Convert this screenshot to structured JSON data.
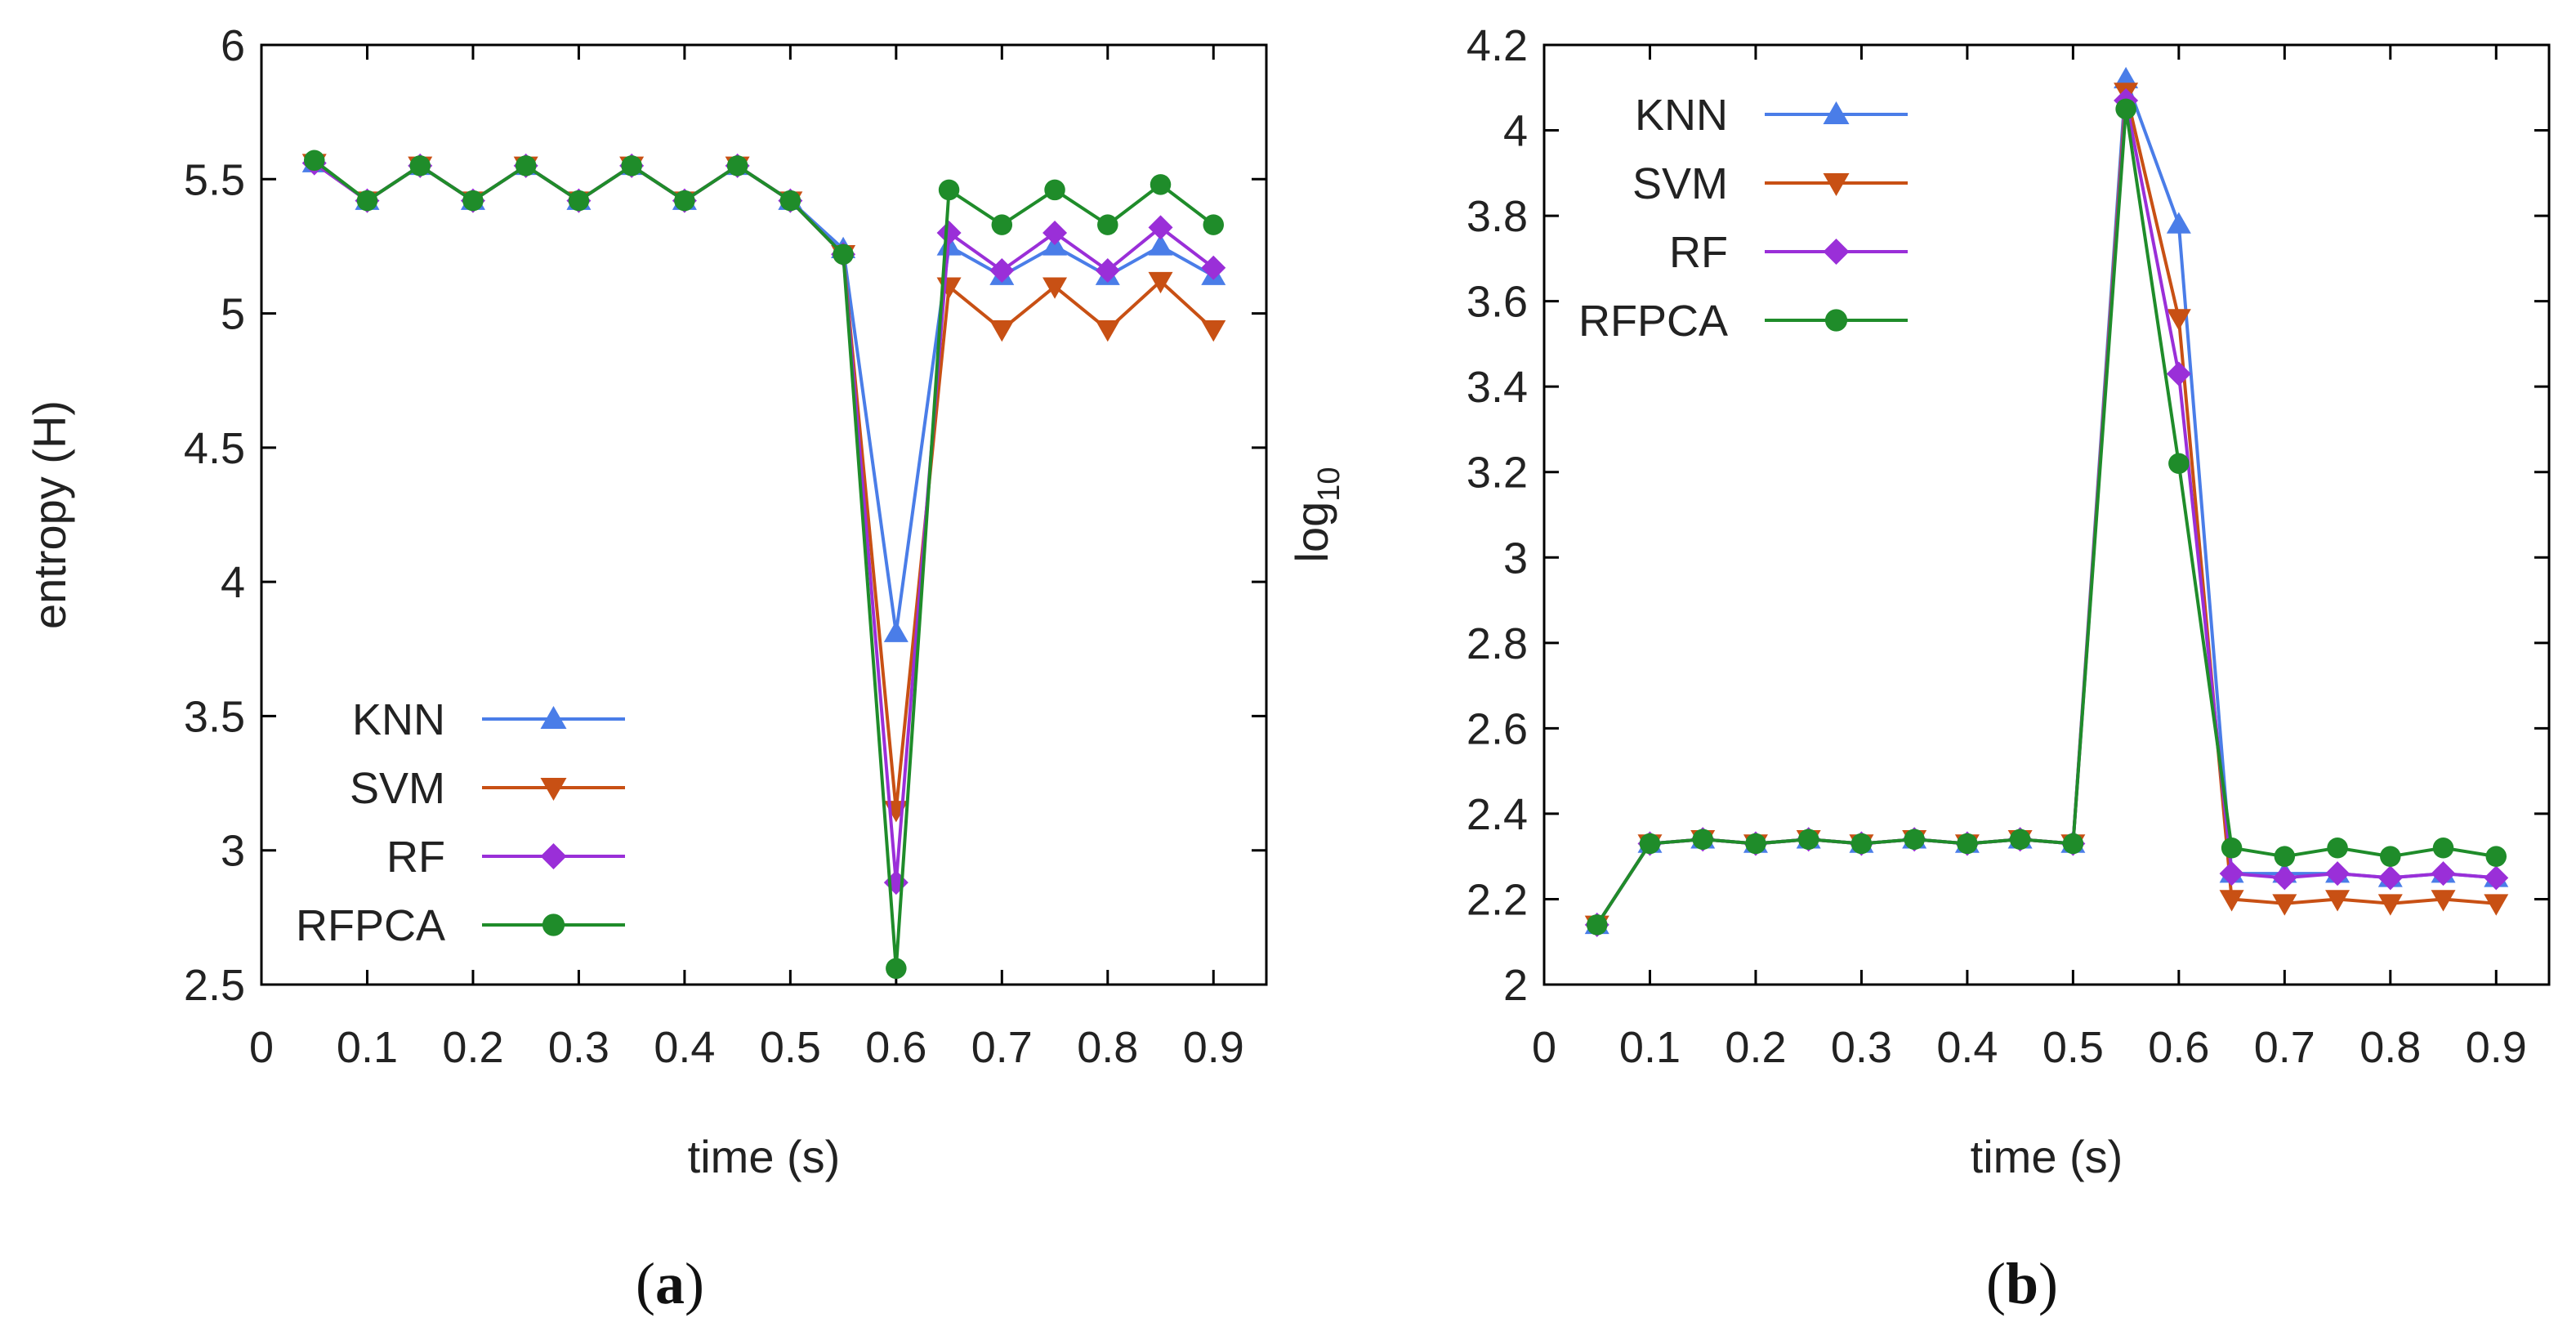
{
  "chart_data": [
    {
      "type": "line",
      "caption_open": "(",
      "caption_letter": "a",
      "caption_close": ")",
      "xlabel": "time (s)",
      "ylabel": "entropy (H)",
      "xlim": [
        0,
        0.95
      ],
      "ylim": [
        2.5,
        6
      ],
      "xticks": [
        "0",
        "0.1",
        "0.2",
        "0.3",
        "0.4",
        "0.5",
        "0.6",
        "0.7",
        "0.8",
        "0.9"
      ],
      "xtick_values": [
        0,
        0.1,
        0.2,
        0.3,
        0.4,
        0.5,
        0.6,
        0.7,
        0.8,
        0.9
      ],
      "yticks": [
        "2.5",
        "3",
        "3.5",
        "4",
        "4.5",
        "5",
        "5.5",
        "6"
      ],
      "ytick_values": [
        2.5,
        3,
        3.5,
        4,
        4.5,
        5,
        5.5,
        6
      ],
      "legend_position": "bottom-left",
      "x": [
        0.05,
        0.1,
        0.15,
        0.2,
        0.25,
        0.3,
        0.35,
        0.4,
        0.45,
        0.5,
        0.55,
        0.6,
        0.65,
        0.7,
        0.75,
        0.8,
        0.85,
        0.9
      ],
      "series": [
        {
          "name": "KNN",
          "color": "#4a7de8",
          "marker": "triangle-up",
          "values": [
            5.56,
            5.42,
            5.55,
            5.42,
            5.55,
            5.42,
            5.55,
            5.42,
            5.55,
            5.42,
            5.24,
            3.81,
            5.25,
            5.14,
            5.25,
            5.14,
            5.25,
            5.14
          ]
        },
        {
          "name": "SVM",
          "color": "#c85014",
          "marker": "triangle-down",
          "values": [
            5.56,
            5.42,
            5.55,
            5.42,
            5.55,
            5.42,
            5.55,
            5.42,
            5.55,
            5.42,
            5.22,
            3.15,
            5.1,
            4.94,
            5.1,
            4.94,
            5.12,
            4.94
          ]
        },
        {
          "name": "RF",
          "color": "#9a2fd8",
          "marker": "diamond",
          "values": [
            5.56,
            5.42,
            5.55,
            5.42,
            5.55,
            5.42,
            5.55,
            5.42,
            5.55,
            5.42,
            5.22,
            2.88,
            5.3,
            5.16,
            5.3,
            5.16,
            5.32,
            5.17
          ]
        },
        {
          "name": "RFPCA",
          "color": "#1f8c2a",
          "marker": "circle",
          "values": [
            5.57,
            5.42,
            5.55,
            5.42,
            5.55,
            5.42,
            5.55,
            5.42,
            5.55,
            5.42,
            5.22,
            2.56,
            5.46,
            5.33,
            5.46,
            5.33,
            5.48,
            5.33
          ]
        }
      ]
    },
    {
      "type": "line",
      "caption_open": "(",
      "caption_letter": "b",
      "caption_close": ")",
      "xlabel": "time (s)",
      "ylabel_main": "log",
      "ylabel_sub": "10",
      "xlim": [
        0,
        0.95
      ],
      "ylim": [
        2,
        4.2
      ],
      "xticks": [
        "0",
        "0.1",
        "0.2",
        "0.3",
        "0.4",
        "0.5",
        "0.6",
        "0.7",
        "0.8",
        "0.9"
      ],
      "xtick_values": [
        0,
        0.1,
        0.2,
        0.3,
        0.4,
        0.5,
        0.6,
        0.7,
        0.8,
        0.9
      ],
      "yticks": [
        "2",
        "2.2",
        "2.4",
        "2.6",
        "2.8",
        "3",
        "3.2",
        "3.4",
        "3.6",
        "3.8",
        "4",
        "4.2"
      ],
      "ytick_values": [
        2,
        2.2,
        2.4,
        2.6,
        2.8,
        3,
        3.2,
        3.4,
        3.6,
        3.8,
        4,
        4.2
      ],
      "legend_position": "top-left",
      "x": [
        0.05,
        0.1,
        0.15,
        0.2,
        0.25,
        0.3,
        0.35,
        0.4,
        0.45,
        0.5,
        0.55,
        0.6,
        0.65,
        0.7,
        0.75,
        0.8,
        0.85,
        0.9
      ],
      "series": [
        {
          "name": "KNN",
          "color": "#4a7de8",
          "marker": "triangle-up",
          "values": [
            2.14,
            2.33,
            2.34,
            2.33,
            2.34,
            2.33,
            2.34,
            2.33,
            2.34,
            2.33,
            4.12,
            3.78,
            2.26,
            2.26,
            2.26,
            2.25,
            2.26,
            2.25
          ]
        },
        {
          "name": "SVM",
          "color": "#c85014",
          "marker": "triangle-down",
          "values": [
            2.14,
            2.33,
            2.34,
            2.33,
            2.34,
            2.33,
            2.34,
            2.33,
            2.34,
            2.33,
            4.09,
            3.56,
            2.2,
            2.19,
            2.2,
            2.19,
            2.2,
            2.19
          ]
        },
        {
          "name": "RF",
          "color": "#9a2fd8",
          "marker": "diamond",
          "values": [
            2.14,
            2.33,
            2.34,
            2.33,
            2.34,
            2.33,
            2.34,
            2.33,
            2.34,
            2.33,
            4.07,
            3.43,
            2.26,
            2.25,
            2.26,
            2.25,
            2.26,
            2.25
          ]
        },
        {
          "name": "RFPCA",
          "color": "#1f8c2a",
          "marker": "circle",
          "values": [
            2.14,
            2.33,
            2.34,
            2.33,
            2.34,
            2.33,
            2.34,
            2.33,
            2.34,
            2.33,
            4.05,
            3.22,
            2.32,
            2.3,
            2.32,
            2.3,
            2.32,
            2.3
          ]
        }
      ]
    }
  ]
}
